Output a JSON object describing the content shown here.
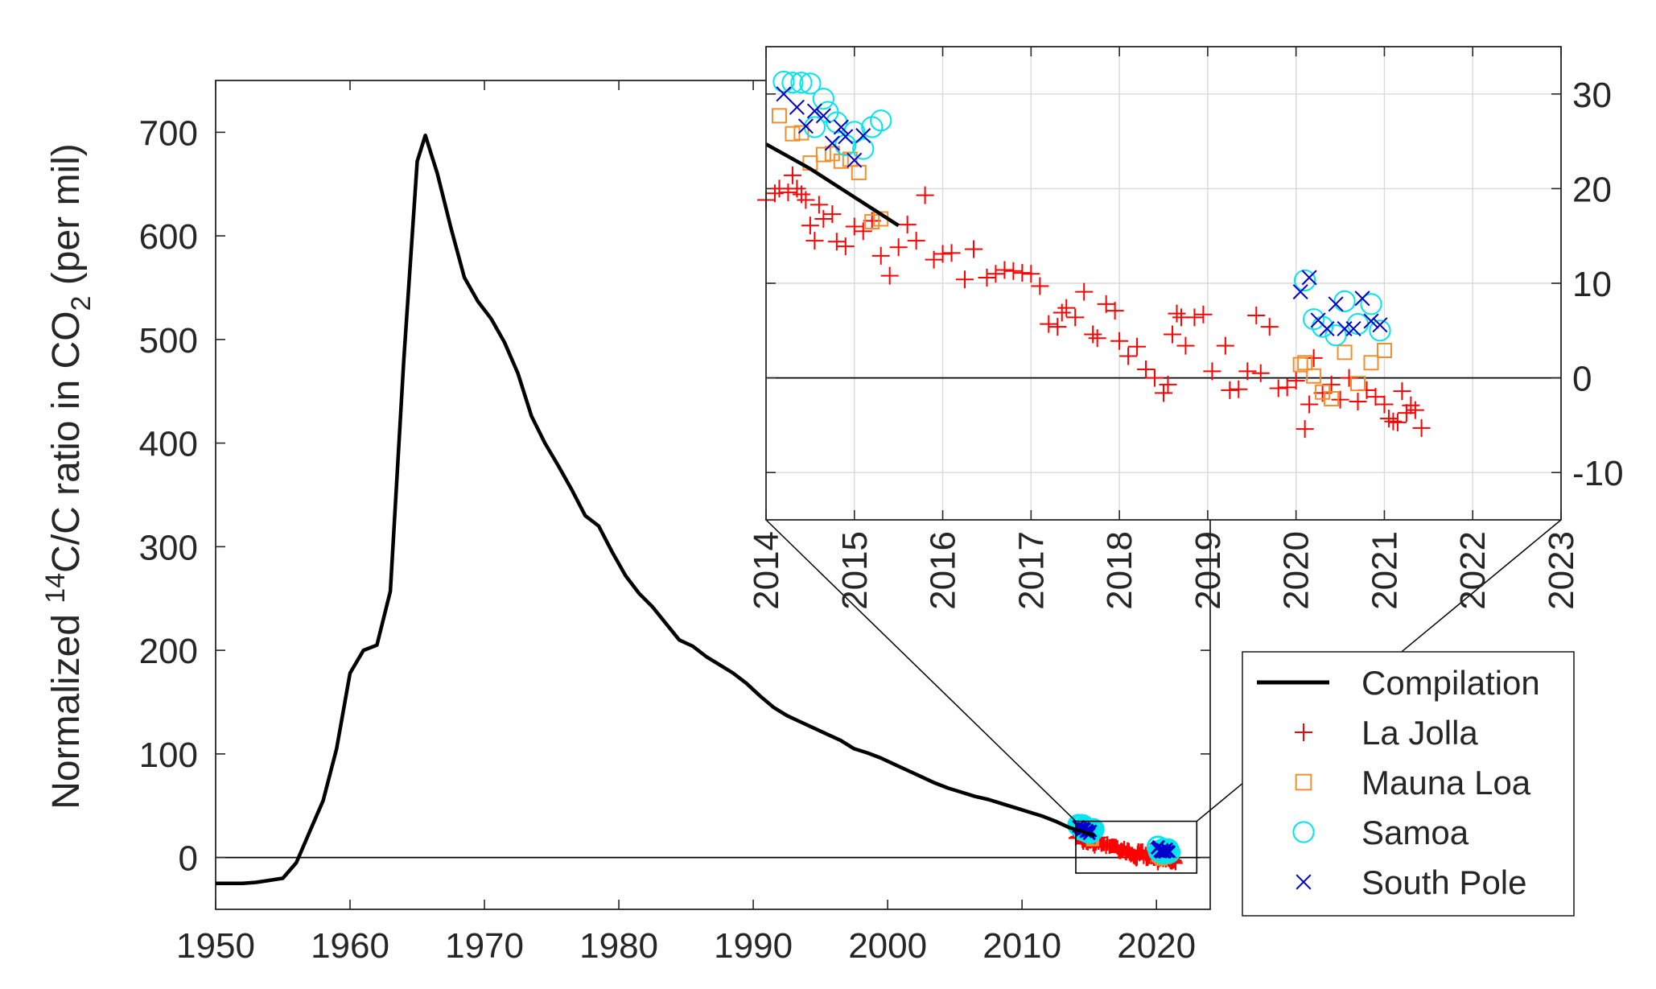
{
  "chart_data": [
    {
      "id": "main",
      "type": "line",
      "ylabel": {
        "prefix": "Normalized ",
        "sup": "14",
        "mid": "C/C ratio in CO",
        "sub": "2",
        "suffix": " (per mil)"
      },
      "xlim": [
        1950,
        2024
      ],
      "ylim": [
        -50,
        750
      ],
      "xticks": [
        "1950",
        "1960",
        "1970",
        "1980",
        "1990",
        "2000",
        "2010",
        "2020"
      ],
      "yticks": [
        "0",
        "100",
        "200",
        "300",
        "400",
        "500",
        "600",
        "700"
      ],
      "zero_line": true,
      "zoom_box": {
        "x": [
          2014,
          2023
        ],
        "y": [
          -15,
          35
        ]
      },
      "series": [
        {
          "name": "Compilation",
          "color": "#000000",
          "x": [
            1950,
            1952,
            1953,
            1954,
            1955,
            1956,
            1957,
            1958,
            1959,
            1960,
            1961,
            1962,
            1963,
            1964,
            1965,
            1965.6,
            1966.5,
            1967.5,
            1968.5,
            1969.5,
            1970.5,
            1971.5,
            1972.5,
            1973.5,
            1974.5,
            1975.5,
            1976.5,
            1977.5,
            1978.5,
            1979.5,
            1980.5,
            1981.5,
            1982.5,
            1983.5,
            1984.5,
            1985.5,
            1986.5,
            1987.5,
            1988.5,
            1989.5,
            1990.5,
            1991.5,
            1992.5,
            1993.5,
            1994.5,
            1995.5,
            1996.5,
            1997.5,
            1998.5,
            1999.5,
            2000.5,
            2001.5,
            2002.5,
            2003.5,
            2004.5,
            2005.5,
            2006.5,
            2007.5,
            2008.5,
            2009.5,
            2010.5,
            2011.5,
            2012.5,
            2013.5,
            2014.5,
            2015.4
          ],
          "y": [
            -25,
            -25,
            -24,
            -22,
            -20,
            -5,
            25,
            55,
            105,
            178,
            200,
            205,
            257,
            480,
            672,
            697,
            660,
            608,
            560,
            537,
            520,
            497,
            467,
            426,
            400,
            378,
            355,
            330,
            320,
            295,
            272,
            255,
            242,
            226,
            210,
            204,
            194,
            186,
            178,
            168,
            156,
            145,
            137,
            131,
            125,
            119,
            113,
            105,
            101,
            96,
            90,
            84,
            78,
            72,
            67,
            63,
            59,
            56,
            52,
            48,
            44,
            40,
            35,
            29,
            25,
            21
          ]
        }
      ]
    },
    {
      "id": "inset",
      "type": "scatter",
      "xlim": [
        2014,
        2023
      ],
      "ylim": [
        -15,
        35
      ],
      "xticks": [
        "2014",
        "2015",
        "2016",
        "2017",
        "2018",
        "2019",
        "2020",
        "2021",
        "2022",
        "2023"
      ],
      "yticks": [
        "-10",
        "0",
        "10",
        "20",
        "30"
      ],
      "grid": true,
      "zero_line": true,
      "yaxis_location": "right",
      "series": [
        {
          "name": "Compilation",
          "marker": "line",
          "color": "#000000",
          "x": [
            2014.0,
            2014.5,
            2015.0,
            2015.5
          ],
          "y": [
            24.7,
            22.1,
            19.1,
            16.1
          ]
        },
        {
          "name": "La Jolla",
          "marker": "+",
          "color": "#ff0000",
          "x": [
            2014.0,
            2014.1,
            2014.15,
            2014.25,
            2014.3,
            2014.35,
            2014.4,
            2014.45,
            2014.5,
            2014.55,
            2014.6,
            2014.65,
            2014.75,
            2014.8,
            2014.9,
            2015.0,
            2015.1,
            2015.2,
            2015.3,
            2015.4,
            2015.5,
            2015.6,
            2015.7,
            2015.8,
            2015.9,
            2016.0,
            2016.1,
            2016.25,
            2016.35,
            2016.5,
            2016.6,
            2016.7,
            2016.8,
            2016.9,
            2017.0,
            2017.1,
            2017.2,
            2017.3,
            2017.35,
            2017.4,
            2017.5,
            2017.6,
            2017.7,
            2017.75,
            2017.85,
            2017.95,
            2018.0,
            2018.1,
            2018.2,
            2018.3,
            2018.4,
            2018.5,
            2018.55,
            2018.6,
            2018.65,
            2018.7,
            2018.75,
            2018.85,
            2018.95,
            2019.05,
            2019.2,
            2019.25,
            2019.35,
            2019.45,
            2019.55,
            2019.6,
            2019.7,
            2019.8,
            2019.9,
            2020.0,
            2020.1,
            2020.15,
            2020.2,
            2020.3,
            2020.4,
            2020.5,
            2020.6,
            2020.7,
            2020.8,
            2020.9,
            2021.0,
            2021.05,
            2021.1,
            2021.15,
            2021.2,
            2021.25,
            2021.3,
            2021.35,
            2021.42
          ],
          "y": [
            18.8,
            19.5,
            20.0,
            19.6,
            21.4,
            20.0,
            19.4,
            18.8,
            16.1,
            14.5,
            18.3,
            16.8,
            17.3,
            14.4,
            13.9,
            16.0,
            15.5,
            16.6,
            12.9,
            10.8,
            13.8,
            16.2,
            14.5,
            19.3,
            12.5,
            13.1,
            13.2,
            10.4,
            13.6,
            10.6,
            11.0,
            11.4,
            11.3,
            11.1,
            11.0,
            9.7,
            5.7,
            5.4,
            6.9,
            7.4,
            6.4,
            9.1,
            4.6,
            4.2,
            7.8,
            7.1,
            3.9,
            2.3,
            3.3,
            0.9,
            0.0,
            -1.6,
            -0.7,
            4.6,
            6.8,
            6.4,
            3.4,
            6.4,
            6.7,
            0.7,
            3.4,
            -1.3,
            -1.2,
            0.7,
            6.6,
            0.5,
            5.4,
            -1.1,
            -1.0,
            -0.3,
            -5.4,
            -2.8,
            2.1,
            -1.6,
            -0.7,
            -2.3,
            0.0,
            -2.5,
            -1.3,
            -2.0,
            -2.8,
            -4.3,
            -4.6,
            -4.7,
            -1.4,
            -3.7,
            -2.9,
            -3.4,
            -5.3
          ]
        },
        {
          "name": "Mauna Loa",
          "marker": "square",
          "color": "#f28e2b",
          "x": [
            2014.15,
            2014.3,
            2014.4,
            2014.5,
            2014.65,
            2014.75,
            2014.85,
            2014.95,
            2015.05,
            2015.2,
            2015.3,
            2020.05,
            2020.1,
            2020.2,
            2020.3,
            2020.4,
            2020.55,
            2020.7,
            2020.85,
            2021.0
          ],
          "y": [
            27.7,
            25.8,
            25.9,
            22.7,
            23.6,
            23.7,
            22.9,
            23.1,
            21.7,
            16.5,
            16.8,
            1.4,
            1.6,
            0.2,
            -1.5,
            -2.2,
            2.7,
            -0.6,
            1.6,
            2.9
          ]
        },
        {
          "name": "Samoa",
          "marker": "circle",
          "color": "#00e5ee",
          "x": [
            2014.2,
            2014.3,
            2014.4,
            2014.5,
            2014.55,
            2014.65,
            2014.7,
            2014.8,
            2014.9,
            2015.0,
            2015.1,
            2015.2,
            2015.3,
            2020.1,
            2020.2,
            2020.3,
            2020.45,
            2020.55,
            2020.7,
            2020.85,
            2020.95
          ],
          "y": [
            31.3,
            31.2,
            31.2,
            31.1,
            26.5,
            29.5,
            28.1,
            27.0,
            24.6,
            26.0,
            24.2,
            26.5,
            27.2,
            10.3,
            6.2,
            5.4,
            4.5,
            8.1,
            5.7,
            7.8,
            5.0
          ]
        },
        {
          "name": "South Pole",
          "marker": "x",
          "color": "#0000cd",
          "x": [
            2014.2,
            2014.35,
            2014.45,
            2014.55,
            2014.65,
            2014.75,
            2014.85,
            2014.9,
            2015.0,
            2015.1,
            2020.05,
            2020.15,
            2020.25,
            2020.35,
            2020.45,
            2020.55,
            2020.65,
            2020.75,
            2020.85,
            2020.95
          ],
          "y": [
            30.0,
            28.6,
            26.6,
            28.2,
            27.7,
            24.8,
            26.5,
            25.5,
            23.0,
            25.6,
            9.1,
            10.6,
            6.1,
            5.2,
            7.8,
            5.2,
            5.2,
            8.4,
            6.0,
            5.6
          ]
        }
      ]
    }
  ],
  "legend": {
    "placement": "bottom-right",
    "entries": [
      {
        "label": "Compilation",
        "marker": "line",
        "color": "#000000"
      },
      {
        "label": "La Jolla",
        "marker": "+",
        "color": "#ff0000"
      },
      {
        "label": "Mauna Loa",
        "marker": "square",
        "color": "#f28e2b"
      },
      {
        "label": "Samoa",
        "marker": "circle",
        "color": "#00e5ee"
      },
      {
        "label": "South Pole",
        "marker": "x",
        "color": "#0000cd"
      }
    ]
  }
}
